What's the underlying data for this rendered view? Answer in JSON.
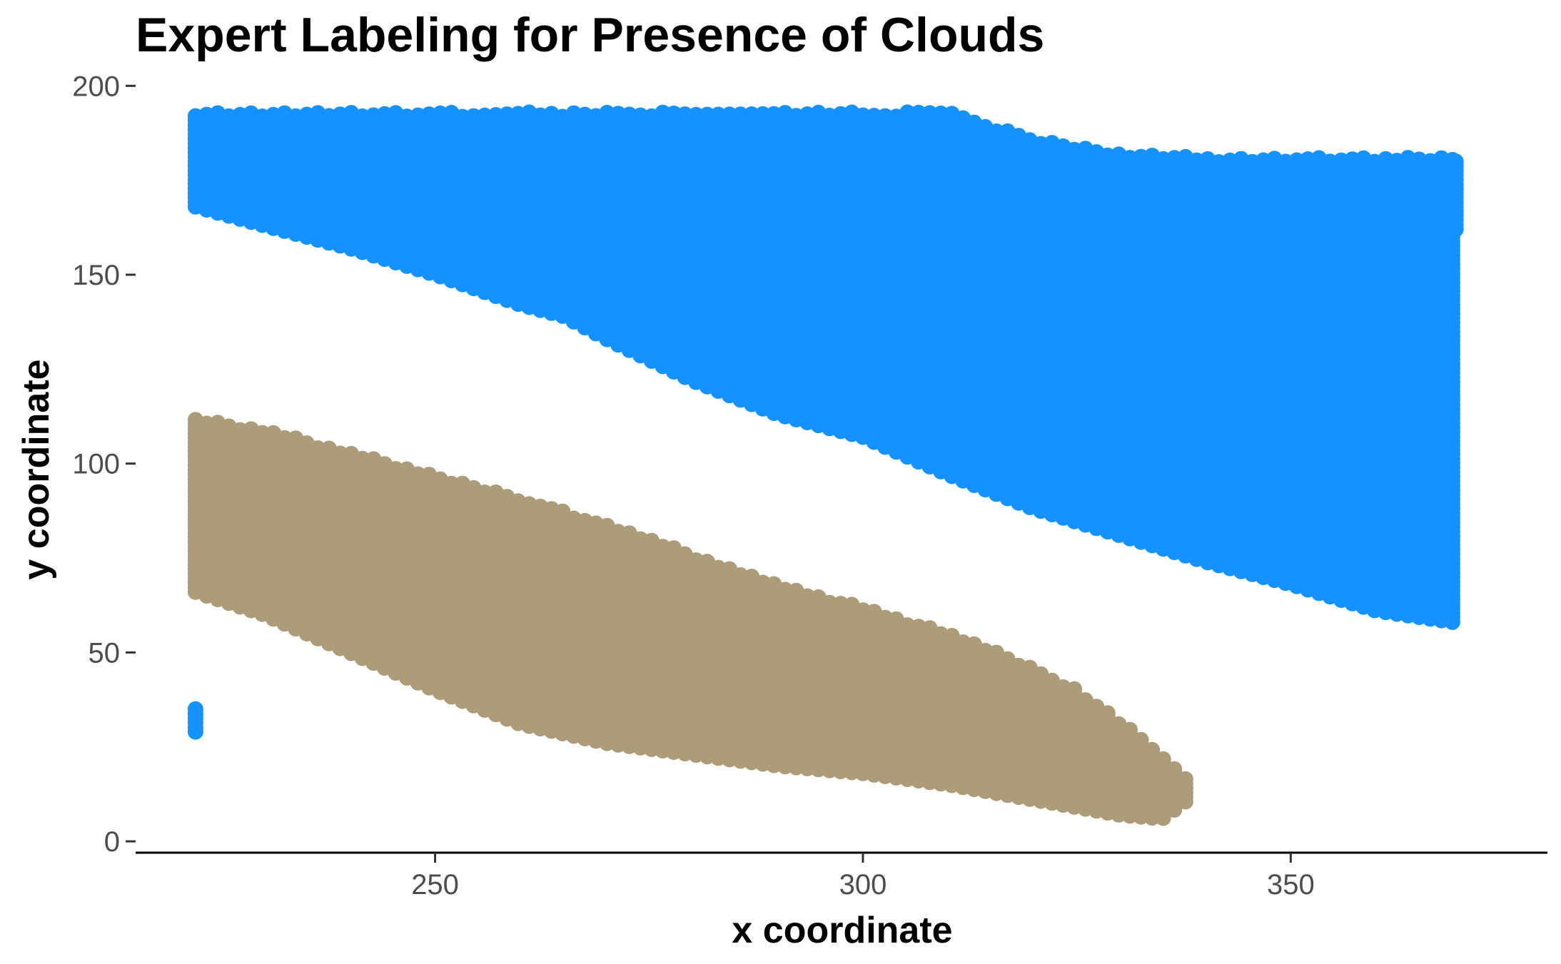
{
  "chart_data": {
    "type": "scatter",
    "title": "Expert Labeling for Presence of Clouds",
    "xlabel": "x coordinate",
    "ylabel": "y coordinate",
    "xlim": [
      215,
      380
    ],
    "ylim": [
      -3,
      201
    ],
    "x_ticks": [
      250,
      300,
      350
    ],
    "x_tick_labels": [
      "250",
      "300",
      "350"
    ],
    "y_ticks": [
      0,
      50,
      100,
      150,
      200
    ],
    "y_tick_labels": [
      "0",
      "50",
      "100",
      "150",
      "200"
    ],
    "grid": false,
    "legend": "none",
    "point_spacing_x": 1.3,
    "point_spacing_y": 1.2,
    "series": [
      {
        "color": "#1592FF",
        "band": {
          "x": [
            222,
            230,
            240,
            250,
            260,
            265,
            270,
            280,
            290,
            300,
            310,
            320,
            330,
            340,
            350,
            360,
            369
          ],
          "y_low": [
            168,
            163,
            157,
            150,
            142,
            139,
            133,
            122,
            113,
            107,
            97,
            88,
            81,
            74,
            68,
            61,
            58
          ],
          "y_high": [
            193,
            193,
            193,
            193,
            193,
            193,
            193,
            193,
            193,
            193,
            193,
            186,
            182,
            181,
            181,
            181,
            181
          ]
        },
        "extra_band": {
          "x": [
            368,
            370
          ],
          "y_low": [
            162,
            162
          ],
          "y_high": [
            181,
            181
          ]
        },
        "segment": {
          "x": 222,
          "y_low": 29,
          "y_high": 35
        }
      },
      {
        "color": "#AD9C7A",
        "band": {
          "x": [
            222,
            230,
            240,
            250,
            260,
            270,
            280,
            290,
            300,
            310,
            320,
            325,
            330,
            335,
            338
          ],
          "y_low": [
            66,
            60,
            50,
            40,
            31,
            26,
            23,
            20,
            18,
            15,
            11,
            9,
            7,
            6,
            11
          ],
          "y_high": [
            112,
            109,
            103,
            97,
            91,
            84,
            76,
            68,
            62,
            55,
            46,
            40,
            32,
            23,
            17
          ]
        }
      }
    ]
  }
}
